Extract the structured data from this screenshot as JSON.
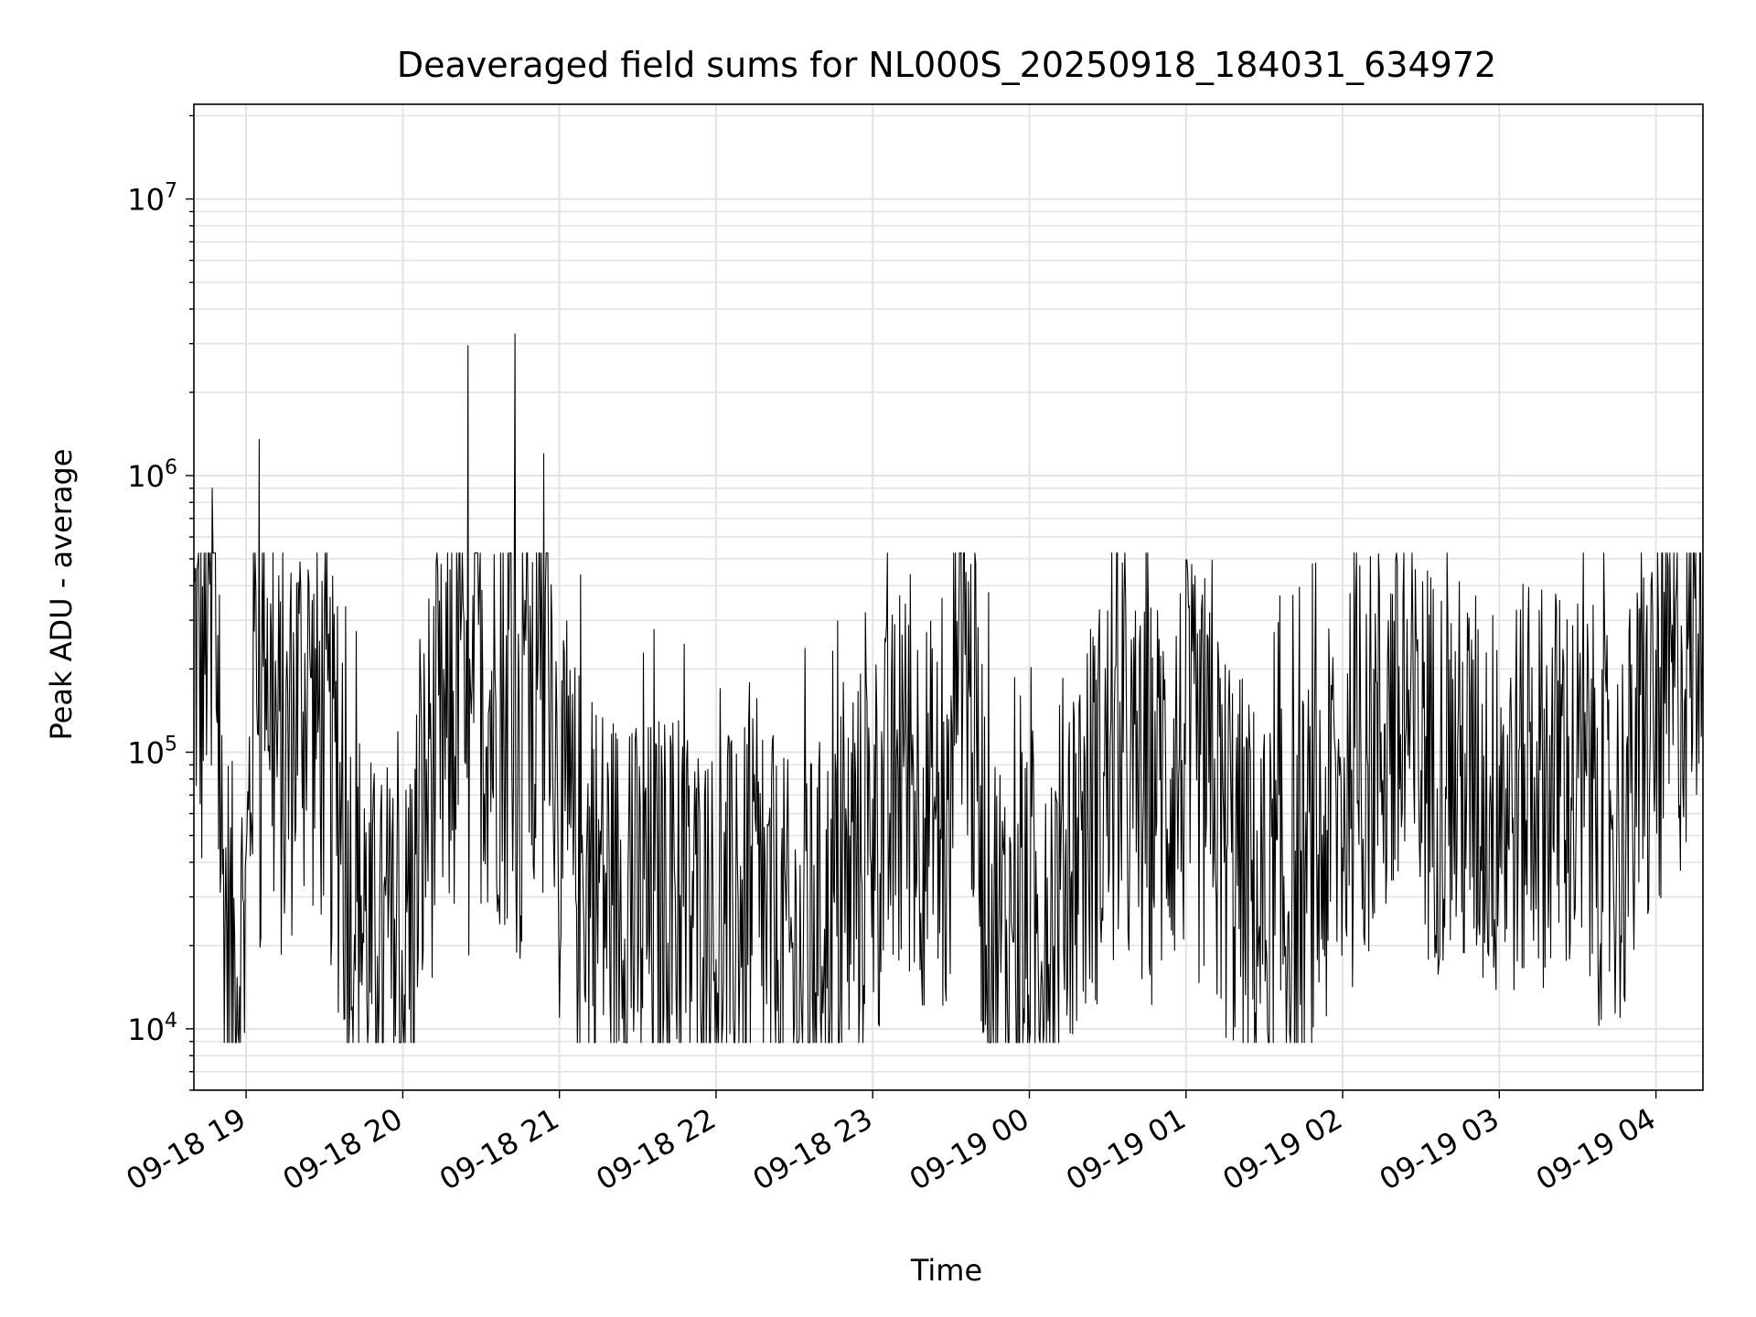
{
  "chart_data": {
    "type": "line",
    "title": "Deaveraged field sums for NL000S_20250918_184031_634972",
    "xlabel": "Time",
    "ylabel": "Peak ADU - average",
    "yscale": "log",
    "ylim": [
      6000,
      22000000
    ],
    "xlim": [
      "2025-09-18 18:40",
      "2025-09-19 04:18"
    ],
    "grid": true,
    "line_color": "#000000",
    "x_ticks": [
      "09-18 19",
      "09-18 20",
      "09-18 21",
      "09-18 22",
      "09-18 23",
      "09-19 00",
      "09-19 01",
      "09-19 02",
      "09-19 03",
      "09-19 04"
    ],
    "y_ticks": [
      {
        "value": 10000,
        "base": "10",
        "exp": "4"
      },
      {
        "value": 100000,
        "base": "10",
        "exp": "5"
      },
      {
        "value": 1000000,
        "base": "10",
        "exp": "6"
      },
      {
        "value": 10000000,
        "base": "10",
        "exp": "7"
      }
    ],
    "series": [
      {
        "x": [
          "2025-09-18 18:40",
          "2025-09-18 18:43",
          "2025-09-18 18:47",
          "2025-09-18 18:51",
          "2025-09-18 18:55",
          "2025-09-18 19:00",
          "2025-09-18 19:05",
          "2025-09-18 19:10",
          "2025-09-18 19:15",
          "2025-09-18 19:20",
          "2025-09-18 19:30",
          "2025-09-18 19:40",
          "2025-09-18 19:50",
          "2025-09-18 20:00",
          "2025-09-18 20:10",
          "2025-09-18 20:20",
          "2025-09-18 20:25",
          "2025-09-18 20:30",
          "2025-09-18 20:40",
          "2025-09-18 20:43",
          "2025-09-18 20:50",
          "2025-09-18 20:54",
          "2025-09-18 21:00",
          "2025-09-18 21:15",
          "2025-09-18 21:30",
          "2025-09-18 21:45",
          "2025-09-18 22:00",
          "2025-09-18 22:15",
          "2025-09-18 22:30",
          "2025-09-18 22:45",
          "2025-09-18 23:00",
          "2025-09-18 23:15",
          "2025-09-18 23:30",
          "2025-09-18 23:32",
          "2025-09-18 23:45",
          "2025-09-19 00:00",
          "2025-09-19 00:15",
          "2025-09-19 00:30",
          "2025-09-19 00:45",
          "2025-09-19 01:00",
          "2025-09-19 01:15",
          "2025-09-19 01:30",
          "2025-09-19 01:45",
          "2025-09-19 02:00",
          "2025-09-19 02:15",
          "2025-09-19 02:30",
          "2025-09-19 02:45",
          "2025-09-19 03:00",
          "2025-09-19 03:15",
          "2025-09-19 03:30",
          "2025-09-19 03:45",
          "2025-09-19 04:00",
          "2025-09-19 04:10",
          "2025-09-19 04:18"
        ],
        "y": [
          350000,
          200000,
          900000,
          40000,
          20000,
          30000,
          1350000,
          150000,
          100000,
          200000,
          150000,
          40000,
          20000,
          18000,
          100000,
          150000,
          2950000,
          200000,
          150000,
          3250000,
          100000,
          1200000,
          60000,
          40000,
          30000,
          35000,
          25000,
          30000,
          20000,
          30000,
          60000,
          100000,
          50000,
          720000,
          30000,
          20000,
          50000,
          100000,
          80000,
          120000,
          60000,
          30000,
          40000,
          80000,
          150000,
          120000,
          100000,
          80000,
          100000,
          90000,
          60000,
          150000,
          250000,
          500000
        ]
      }
    ]
  }
}
